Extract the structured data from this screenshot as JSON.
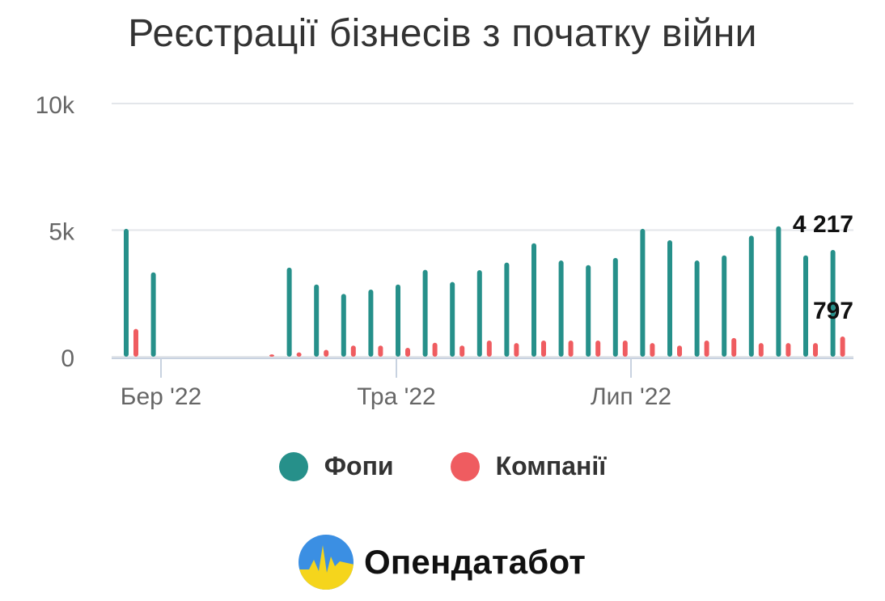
{
  "chart_data": {
    "type": "bar",
    "title": "Реєстрації бізнесів з початку війни",
    "ylim": [
      0,
      10000
    ],
    "y_ticks": [
      "0",
      "5k",
      "10k"
    ],
    "x_ticks": [
      "Бер '22",
      "Тра '22",
      "Лип '22"
    ],
    "grid": true,
    "legend_position": "bottom",
    "series": [
      {
        "name": "Фопи",
        "color": "#26908a",
        "values": [
          5050,
          3330,
          0,
          0,
          0,
          0,
          3520,
          2850,
          2480,
          2650,
          2850,
          3430,
          2950,
          3420,
          3720,
          4480,
          3800,
          3620,
          3900,
          5050,
          4600,
          3800,
          4000,
          4780,
          5150,
          4000,
          4217
        ]
      },
      {
        "name": "Компанії",
        "color": "#ef5c60",
        "values": [
          1100,
          0,
          0,
          0,
          0,
          90,
          170,
          270,
          440,
          440,
          350,
          550,
          440,
          640,
          540,
          640,
          640,
          640,
          640,
          540,
          440,
          640,
          740,
          540,
          540,
          540,
          797
        ]
      }
    ],
    "annotations": [
      {
        "series": "Фопи",
        "label": "4 217"
      },
      {
        "series": "Компанії",
        "label": "797"
      }
    ]
  },
  "legend": {
    "items": [
      {
        "label": "Фопи",
        "color": "#26908a"
      },
      {
        "label": "Компанії",
        "color": "#ef5c60"
      }
    ]
  },
  "branding": {
    "name": "Опендатабот",
    "logo_icon": "opendatabot-logo-icon"
  }
}
